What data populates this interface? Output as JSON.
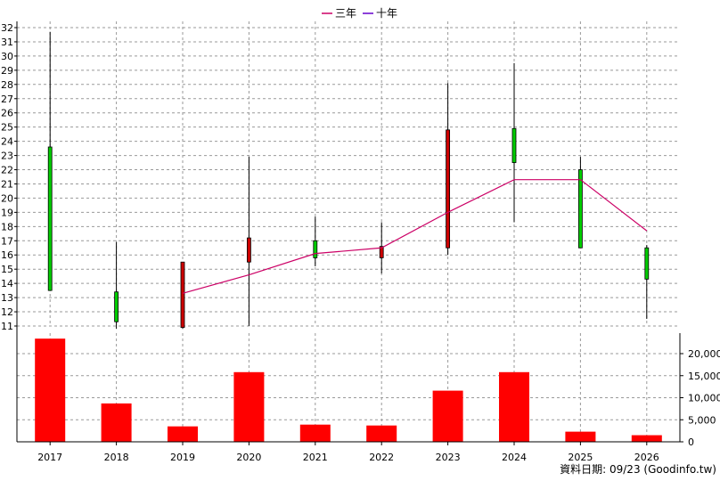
{
  "chart_data": {
    "type": "candlestick-with-volume",
    "legend": [
      {
        "name": "三年",
        "color": "#cc0066"
      },
      {
        "name": "十年",
        "color": "#6600cc"
      }
    ],
    "categories": [
      "2017",
      "2018",
      "2019",
      "2020",
      "2021",
      "2022",
      "2023",
      "2024",
      "2025",
      "2026"
    ],
    "price_axis": {
      "min": 11,
      "max": 32,
      "step": 1
    },
    "volume_axis": {
      "min": 0,
      "max": 20000,
      "ticks": [
        "0",
        "5,000",
        "10,000",
        "15,000",
        "20,000"
      ],
      "tick_values": [
        0,
        5000,
        10000,
        15000,
        20000
      ]
    },
    "candles": [
      {
        "open": 13.5,
        "close": 23.6,
        "high": 31.7,
        "low": 13.5,
        "color": "#00cc00"
      },
      {
        "open": 11.3,
        "close": 13.4,
        "high": 16.9,
        "low": 10.8,
        "color": "#00cc00"
      },
      {
        "open": 15.5,
        "close": 10.9,
        "high": 15.5,
        "low": 10.8,
        "color": "#cc0000"
      },
      {
        "open": 17.2,
        "close": 15.5,
        "high": 22.9,
        "low": 11.0,
        "color": "#cc0000"
      },
      {
        "open": 15.8,
        "close": 17.0,
        "high": 18.7,
        "low": 15.2,
        "color": "#00cc00"
      },
      {
        "open": 16.6,
        "close": 15.8,
        "high": 18.3,
        "low": 14.7,
        "color": "#cc0000"
      },
      {
        "open": 24.8,
        "close": 16.5,
        "high": 28.1,
        "low": 16.0,
        "color": "#cc0000"
      },
      {
        "open": 22.5,
        "close": 24.9,
        "high": 29.5,
        "low": 18.3,
        "color": "#00cc00"
      },
      {
        "open": 16.5,
        "close": 22.0,
        "high": 22.9,
        "low": 16.5,
        "color": "#00cc00"
      },
      {
        "open": 14.3,
        "close": 16.5,
        "high": 16.7,
        "low": 11.5,
        "color": "#00cc00"
      }
    ],
    "series": [
      {
        "name": "三年",
        "color": "#cc0066",
        "values": [
          null,
          null,
          13.3,
          14.6,
          16.1,
          16.5,
          19.0,
          21.3,
          21.3,
          17.7
        ]
      }
    ],
    "volume": [
      23400,
      8700,
      3500,
      15800,
      3900,
      3700,
      11600,
      15800,
      2300,
      1500
    ],
    "volume_color": "#ff0000",
    "grid": true
  },
  "footer": {
    "text": "資料日期: 09/23  (Goodinfo.tw)"
  }
}
